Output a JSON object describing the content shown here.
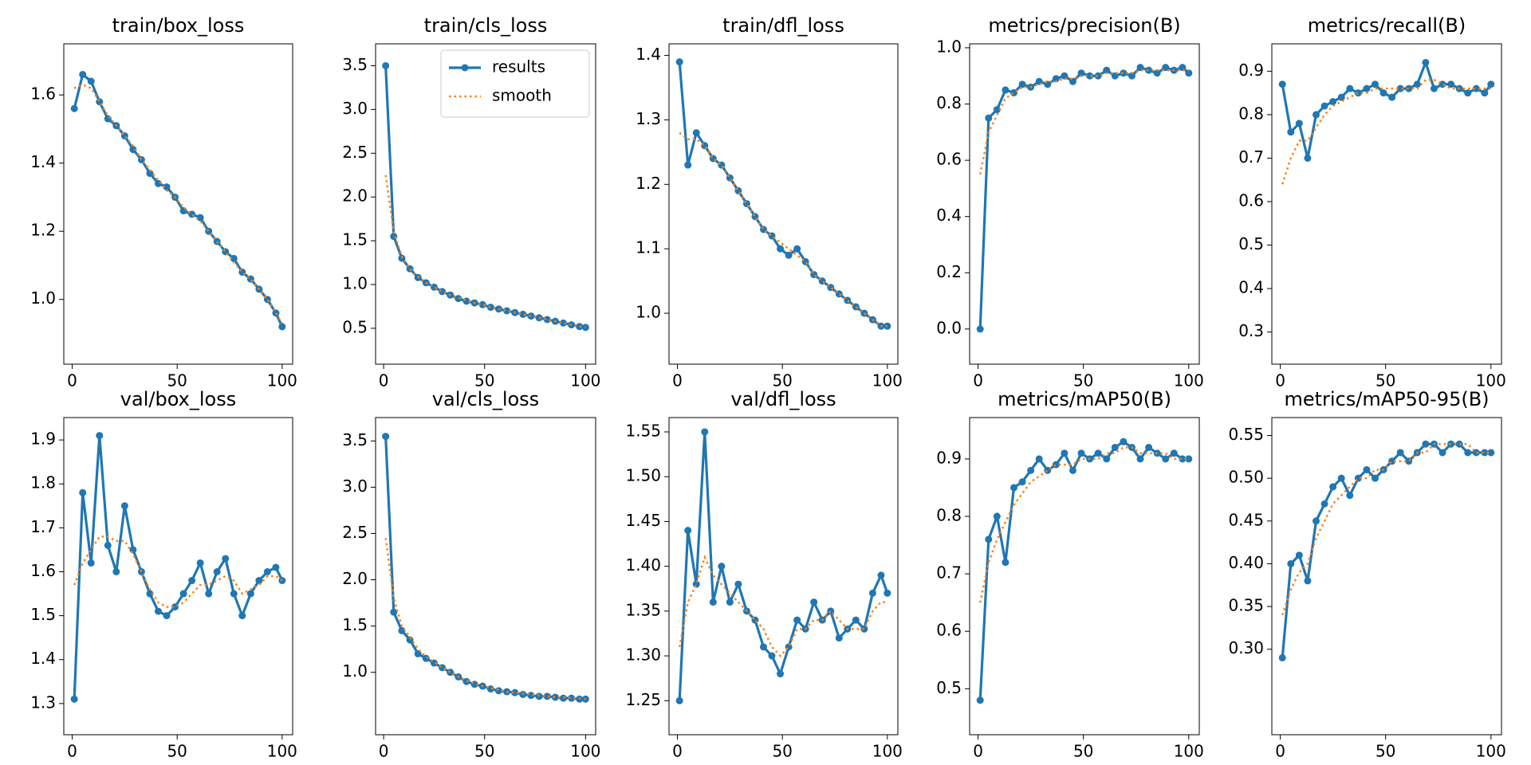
{
  "chart_data": [
    {
      "type": "line",
      "title": "train/box_loss",
      "x": [
        1,
        5,
        9,
        13,
        17,
        21,
        25,
        29,
        33,
        37,
        41,
        45,
        49,
        53,
        57,
        61,
        65,
        69,
        73,
        77,
        81,
        85,
        89,
        93,
        97,
        100
      ],
      "series": [
        {
          "name": "results",
          "color": "#1f77b4",
          "values": [
            1.56,
            1.66,
            1.64,
            1.58,
            1.53,
            1.51,
            1.48,
            1.44,
            1.41,
            1.37,
            1.34,
            1.33,
            1.3,
            1.26,
            1.25,
            1.24,
            1.2,
            1.17,
            1.14,
            1.12,
            1.08,
            1.06,
            1.03,
            1.0,
            0.96,
            0.92
          ]
        },
        {
          "name": "smooth",
          "color": "#ff7f0e",
          "values": [
            1.62,
            1.63,
            1.62,
            1.58,
            1.54,
            1.51,
            1.48,
            1.45,
            1.41,
            1.38,
            1.35,
            1.32,
            1.3,
            1.27,
            1.25,
            1.23,
            1.2,
            1.17,
            1.14,
            1.11,
            1.08,
            1.06,
            1.03,
            1.0,
            0.96,
            0.93
          ]
        }
      ],
      "xlim": [
        -4,
        105
      ],
      "xticks": [
        0,
        50,
        100
      ],
      "ylim": [
        0.81,
        1.75
      ],
      "yticks": [
        {
          "value": 1.0,
          "label": "1.0"
        },
        1.2,
        1.4,
        1.6
      ]
    },
    {
      "type": "line",
      "title": "train/cls_loss",
      "x": [
        1,
        5,
        9,
        13,
        17,
        21,
        25,
        29,
        33,
        37,
        41,
        45,
        49,
        53,
        57,
        61,
        65,
        69,
        73,
        77,
        81,
        85,
        89,
        93,
        97,
        100
      ],
      "series": [
        {
          "name": "results",
          "color": "#1f77b4",
          "values": [
            3.5,
            1.55,
            1.3,
            1.18,
            1.08,
            1.02,
            0.97,
            0.92,
            0.88,
            0.84,
            0.81,
            0.79,
            0.77,
            0.74,
            0.72,
            0.7,
            0.68,
            0.66,
            0.64,
            0.62,
            0.6,
            0.58,
            0.56,
            0.54,
            0.52,
            0.51
          ]
        },
        {
          "name": "smooth",
          "color": "#ff7f0e",
          "values": [
            2.25,
            1.6,
            1.32,
            1.18,
            1.09,
            1.02,
            0.97,
            0.92,
            0.88,
            0.85,
            0.82,
            0.79,
            0.77,
            0.74,
            0.72,
            0.7,
            0.68,
            0.66,
            0.64,
            0.62,
            0.6,
            0.58,
            0.56,
            0.54,
            0.52,
            0.51
          ]
        }
      ],
      "xlim": [
        -4,
        105
      ],
      "xticks": [
        0,
        50,
        100
      ],
      "ylim": [
        0.09,
        3.75
      ],
      "yticks": [
        0.5,
        {
          "value": 1.0,
          "label": "1.0"
        },
        1.5,
        {
          "value": 2.0,
          "label": "2.0"
        },
        2.5,
        {
          "value": 3.0,
          "label": "3.0"
        },
        3.5
      ],
      "legend": "upper right"
    },
    {
      "type": "line",
      "title": "train/dfl_loss",
      "x": [
        1,
        5,
        9,
        13,
        17,
        21,
        25,
        29,
        33,
        37,
        41,
        45,
        49,
        53,
        57,
        61,
        65,
        69,
        73,
        77,
        81,
        85,
        89,
        93,
        97,
        100
      ],
      "series": [
        {
          "name": "results",
          "color": "#1f77b4",
          "values": [
            1.39,
            1.23,
            1.28,
            1.26,
            1.24,
            1.23,
            1.21,
            1.19,
            1.17,
            1.15,
            1.13,
            1.12,
            1.1,
            1.09,
            1.1,
            1.08,
            1.06,
            1.05,
            1.04,
            1.03,
            1.02,
            1.01,
            1.0,
            0.99,
            0.98,
            0.98
          ]
        },
        {
          "name": "smooth",
          "color": "#ff7f0e",
          "values": [
            1.28,
            1.27,
            1.27,
            1.26,
            1.24,
            1.23,
            1.21,
            1.19,
            1.17,
            1.15,
            1.13,
            1.12,
            1.11,
            1.1,
            1.09,
            1.08,
            1.06,
            1.05,
            1.04,
            1.03,
            1.02,
            1.01,
            1.0,
            0.99,
            0.98,
            0.98
          ]
        }
      ],
      "xlim": [
        -4,
        105
      ],
      "xticks": [
        0,
        50,
        100
      ],
      "ylim": [
        0.921,
        1.418
      ],
      "yticks": [
        {
          "value": 1.0,
          "label": "1.0"
        },
        1.1,
        1.2,
        1.3,
        1.4
      ]
    },
    {
      "type": "line",
      "title": "metrics/precision(B)",
      "x": [
        1,
        5,
        9,
        13,
        17,
        21,
        25,
        29,
        33,
        37,
        41,
        45,
        49,
        53,
        57,
        61,
        65,
        69,
        73,
        77,
        81,
        85,
        89,
        93,
        97,
        100
      ],
      "series": [
        {
          "name": "results",
          "color": "#1f77b4",
          "values": [
            0.0,
            0.75,
            0.78,
            0.85,
            0.84,
            0.87,
            0.86,
            0.88,
            0.87,
            0.89,
            0.9,
            0.88,
            0.91,
            0.9,
            0.9,
            0.92,
            0.9,
            0.91,
            0.9,
            0.93,
            0.92,
            0.91,
            0.93,
            0.92,
            0.93,
            0.91
          ]
        },
        {
          "name": "smooth",
          "color": "#ff7f0e",
          "values": [
            0.55,
            0.7,
            0.76,
            0.82,
            0.84,
            0.86,
            0.86,
            0.87,
            0.88,
            0.88,
            0.89,
            0.89,
            0.9,
            0.9,
            0.9,
            0.91,
            0.91,
            0.91,
            0.91,
            0.92,
            0.92,
            0.92,
            0.92,
            0.92,
            0.92,
            0.92
          ]
        }
      ],
      "xlim": [
        -4,
        105
      ],
      "xticks": [
        0,
        50,
        100
      ],
      "ylim": [
        -0.125,
        1.014
      ],
      "yticks": [
        {
          "value": 0.0,
          "label": "0.0"
        },
        0.2,
        0.4,
        0.6,
        0.8,
        {
          "value": 1.0,
          "label": "1.0"
        }
      ]
    },
    {
      "type": "line",
      "title": "metrics/recall(B)",
      "x": [
        1,
        5,
        9,
        13,
        17,
        21,
        25,
        29,
        33,
        37,
        41,
        45,
        49,
        53,
        57,
        61,
        65,
        69,
        73,
        77,
        81,
        85,
        89,
        93,
        97,
        100
      ],
      "series": [
        {
          "name": "results",
          "color": "#1f77b4",
          "values": [
            0.87,
            0.76,
            0.78,
            0.7,
            0.8,
            0.82,
            0.83,
            0.84,
            0.86,
            0.85,
            0.86,
            0.87,
            0.85,
            0.84,
            0.86,
            0.86,
            0.87,
            0.92,
            0.86,
            0.87,
            0.87,
            0.86,
            0.85,
            0.86,
            0.85,
            0.87
          ]
        },
        {
          "name": "smooth",
          "color": "#ff7f0e",
          "values": [
            0.64,
            0.7,
            0.74,
            0.74,
            0.77,
            0.8,
            0.82,
            0.83,
            0.84,
            0.85,
            0.85,
            0.86,
            0.86,
            0.86,
            0.86,
            0.86,
            0.86,
            0.88,
            0.88,
            0.87,
            0.86,
            0.86,
            0.86,
            0.86,
            0.86,
            0.86
          ]
        }
      ],
      "xlim": [
        -4,
        105
      ],
      "xticks": [
        0,
        50,
        100
      ],
      "ylim": [
        0.226,
        0.963
      ],
      "yticks": [
        0.3,
        0.4,
        0.5,
        0.6,
        0.7,
        0.8,
        0.9
      ]
    },
    {
      "type": "line",
      "title": "val/box_loss",
      "x": [
        1,
        5,
        9,
        13,
        17,
        21,
        25,
        29,
        33,
        37,
        41,
        45,
        49,
        53,
        57,
        61,
        65,
        69,
        73,
        77,
        81,
        85,
        89,
        93,
        97,
        100
      ],
      "series": [
        {
          "name": "results",
          "color": "#1f77b4",
          "values": [
            1.31,
            1.78,
            1.62,
            1.91,
            1.66,
            1.6,
            1.75,
            1.65,
            1.6,
            1.55,
            1.51,
            1.5,
            1.52,
            1.55,
            1.58,
            1.62,
            1.55,
            1.6,
            1.63,
            1.55,
            1.5,
            1.55,
            1.58,
            1.6,
            1.61,
            1.58
          ]
        },
        {
          "name": "smooth",
          "color": "#ff7f0e",
          "values": [
            1.57,
            1.62,
            1.65,
            1.68,
            1.68,
            1.67,
            1.67,
            1.64,
            1.6,
            1.56,
            1.53,
            1.52,
            1.52,
            1.53,
            1.55,
            1.57,
            1.57,
            1.58,
            1.59,
            1.58,
            1.55,
            1.56,
            1.57,
            1.59,
            1.59,
            1.58
          ]
        }
      ],
      "xlim": [
        -4,
        105
      ],
      "xticks": [
        0,
        50,
        100
      ],
      "ylim": [
        1.229,
        1.951
      ],
      "yticks": [
        1.3,
        1.4,
        1.5,
        1.6,
        1.7,
        1.8,
        1.9
      ]
    },
    {
      "type": "line",
      "title": "val/cls_loss",
      "x": [
        1,
        5,
        9,
        13,
        17,
        21,
        25,
        29,
        33,
        37,
        41,
        45,
        49,
        53,
        57,
        61,
        65,
        69,
        73,
        77,
        81,
        85,
        89,
        93,
        97,
        100
      ],
      "series": [
        {
          "name": "results",
          "color": "#1f77b4",
          "values": [
            3.55,
            1.65,
            1.45,
            1.35,
            1.2,
            1.15,
            1.1,
            1.05,
            1.0,
            0.95,
            0.9,
            0.87,
            0.85,
            0.82,
            0.8,
            0.79,
            0.78,
            0.76,
            0.75,
            0.74,
            0.74,
            0.73,
            0.72,
            0.72,
            0.71,
            0.71
          ]
        },
        {
          "name": "smooth",
          "color": "#ff7f0e",
          "values": [
            2.45,
            1.8,
            1.5,
            1.38,
            1.25,
            1.17,
            1.11,
            1.05,
            1.0,
            0.95,
            0.91,
            0.88,
            0.85,
            0.83,
            0.81,
            0.79,
            0.78,
            0.77,
            0.76,
            0.75,
            0.74,
            0.73,
            0.73,
            0.72,
            0.72,
            0.71
          ]
        }
      ],
      "xlim": [
        -4,
        105
      ],
      "xticks": [
        0,
        50,
        100
      ],
      "ylim": [
        0.325,
        3.753
      ],
      "yticks": [
        {
          "value": 1.0,
          "label": "1.0"
        },
        1.5,
        {
          "value": 2.0,
          "label": "2.0"
        },
        2.5,
        {
          "value": 3.0,
          "label": "3.0"
        },
        3.5
      ]
    },
    {
      "type": "line",
      "title": "val/dfl_loss",
      "x": [
        1,
        5,
        9,
        13,
        17,
        21,
        25,
        29,
        33,
        37,
        41,
        45,
        49,
        53,
        57,
        61,
        65,
        69,
        73,
        77,
        81,
        85,
        89,
        93,
        97,
        100
      ],
      "series": [
        {
          "name": "results",
          "color": "#1f77b4",
          "values": [
            1.25,
            1.44,
            1.38,
            1.55,
            1.36,
            1.4,
            1.36,
            1.38,
            1.35,
            1.34,
            1.31,
            1.3,
            1.28,
            1.31,
            1.34,
            1.33,
            1.36,
            1.34,
            1.35,
            1.32,
            1.33,
            1.34,
            1.33,
            1.37,
            1.39,
            1.37
          ]
        },
        {
          "name": "smooth",
          "color": "#ff7f0e",
          "values": [
            1.31,
            1.36,
            1.38,
            1.41,
            1.39,
            1.38,
            1.37,
            1.36,
            1.35,
            1.34,
            1.33,
            1.31,
            1.3,
            1.31,
            1.33,
            1.33,
            1.34,
            1.34,
            1.35,
            1.34,
            1.33,
            1.33,
            1.33,
            1.35,
            1.36,
            1.36
          ]
        }
      ],
      "xlim": [
        -4,
        105
      ],
      "xticks": [
        0,
        50,
        100
      ],
      "ylim": [
        1.212,
        1.566
      ],
      "yticks": [
        1.25,
        {
          "value": 1.3,
          "label": "1.30"
        },
        1.35,
        {
          "value": 1.4,
          "label": "1.40"
        },
        1.45,
        {
          "value": 1.5,
          "label": "1.50"
        },
        1.55
      ]
    },
    {
      "type": "line",
      "title": "metrics/mAP50(B)",
      "x": [
        1,
        5,
        9,
        13,
        17,
        21,
        25,
        29,
        33,
        37,
        41,
        45,
        49,
        53,
        57,
        61,
        65,
        69,
        73,
        77,
        81,
        85,
        89,
        93,
        97,
        100
      ],
      "series": [
        {
          "name": "results",
          "color": "#1f77b4",
          "values": [
            0.48,
            0.76,
            0.8,
            0.72,
            0.85,
            0.86,
            0.88,
            0.9,
            0.88,
            0.89,
            0.91,
            0.88,
            0.91,
            0.9,
            0.91,
            0.9,
            0.92,
            0.93,
            0.92,
            0.9,
            0.92,
            0.91,
            0.9,
            0.91,
            0.9,
            0.9
          ]
        },
        {
          "name": "smooth",
          "color": "#ff7f0e",
          "values": [
            0.65,
            0.72,
            0.76,
            0.79,
            0.82,
            0.84,
            0.86,
            0.87,
            0.88,
            0.89,
            0.89,
            0.89,
            0.9,
            0.9,
            0.9,
            0.91,
            0.91,
            0.92,
            0.92,
            0.91,
            0.91,
            0.91,
            0.91,
            0.9,
            0.9,
            0.9
          ]
        }
      ],
      "xlim": [
        -4,
        105
      ],
      "xticks": [
        0,
        50,
        100
      ],
      "ylim": [
        0.42,
        0.972
      ],
      "yticks": [
        0.5,
        0.6,
        0.7,
        0.8,
        0.9
      ]
    },
    {
      "type": "line",
      "title": "metrics/mAP50-95(B)",
      "x": [
        1,
        5,
        9,
        13,
        17,
        21,
        25,
        29,
        33,
        37,
        41,
        45,
        49,
        53,
        57,
        61,
        65,
        69,
        73,
        77,
        81,
        85,
        89,
        93,
        97,
        100
      ],
      "series": [
        {
          "name": "results",
          "color": "#1f77b4",
          "values": [
            0.29,
            0.4,
            0.41,
            0.38,
            0.45,
            0.47,
            0.49,
            0.5,
            0.48,
            0.5,
            0.51,
            0.5,
            0.51,
            0.52,
            0.53,
            0.52,
            0.53,
            0.54,
            0.54,
            0.53,
            0.54,
            0.54,
            0.53,
            0.53,
            0.53,
            0.53
          ]
        },
        {
          "name": "smooth",
          "color": "#ff7f0e",
          "values": [
            0.34,
            0.37,
            0.39,
            0.4,
            0.43,
            0.45,
            0.47,
            0.48,
            0.49,
            0.5,
            0.5,
            0.51,
            0.51,
            0.52,
            0.52,
            0.52,
            0.53,
            0.53,
            0.54,
            0.54,
            0.54,
            0.54,
            0.54,
            0.53,
            0.53,
            0.53
          ]
        }
      ],
      "xlim": [
        -4,
        105
      ],
      "xticks": [
        0,
        50,
        100
      ],
      "ylim": [
        0.2,
        0.571
      ],
      "yticks": [
        {
          "value": 0.3,
          "label": "0.30"
        },
        0.35,
        {
          "value": 0.4,
          "label": "0.40"
        },
        0.45,
        {
          "value": 0.5,
          "label": "0.50"
        },
        0.55
      ]
    }
  ]
}
